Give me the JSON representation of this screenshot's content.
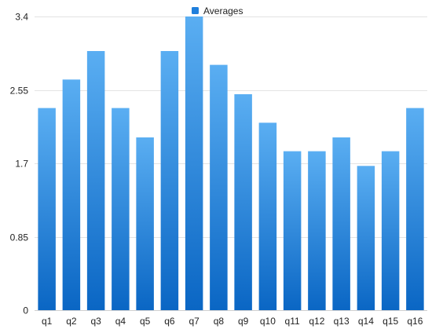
{
  "chart_data": {
    "type": "bar",
    "categories": [
      "q1",
      "q2",
      "q3",
      "q4",
      "q5",
      "q6",
      "q7",
      "q8",
      "q9",
      "q10",
      "q11",
      "q12",
      "q13",
      "q14",
      "q15",
      "q16"
    ],
    "series": [
      {
        "name": "Averages",
        "values": [
          2.34,
          2.67,
          3.0,
          2.34,
          2.0,
          3.0,
          3.4,
          2.84,
          2.5,
          2.17,
          1.84,
          1.84,
          2.0,
          1.67,
          1.84,
          2.34
        ]
      }
    ],
    "yticks": [
      "0",
      "0.85",
      "1.7",
      "2.55",
      "3.4"
    ],
    "ylim": [
      0,
      3.4
    ],
    "grid": true,
    "legend_position": "top-center",
    "colors": {
      "bar_top": "#5aaef2",
      "bar_bottom": "#0a66c4",
      "legend_swatch": "#1f7fdc"
    }
  }
}
